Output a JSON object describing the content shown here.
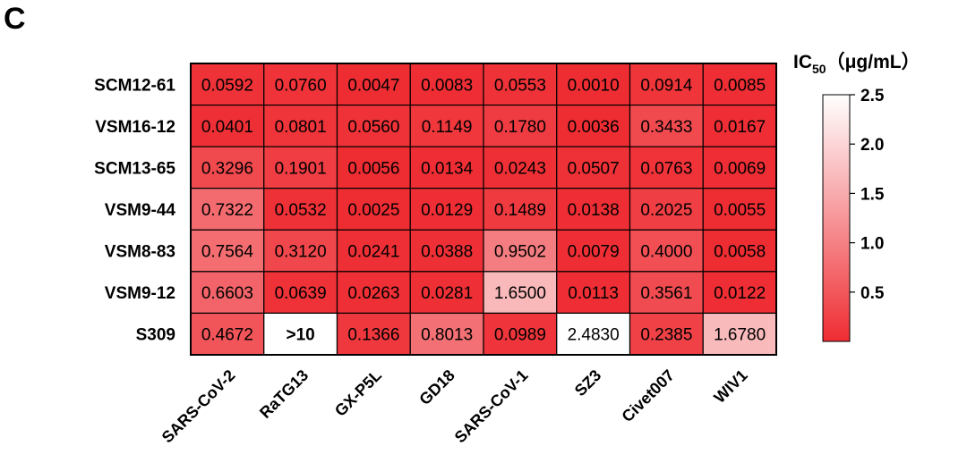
{
  "panel_label": "C",
  "chart_data": {
    "type": "heatmap",
    "rows": [
      "SCM12-61",
      "VSM16-12",
      "SCM13-65",
      "VSM9-44",
      "VSM8-83",
      "VSM9-12",
      "S309"
    ],
    "columns": [
      "SARS-CoV-2",
      "RaTG13",
      "GX-P5L",
      "GD18",
      "SARS-CoV-1",
      "SZ3",
      "Civet007",
      "WIV1"
    ],
    "values": [
      [
        "0.0592",
        "0.0760",
        "0.0047",
        "0.0083",
        "0.0553",
        "0.0010",
        "0.0914",
        "0.0085"
      ],
      [
        "0.0401",
        "0.0801",
        "0.0560",
        "0.1149",
        "0.1780",
        "0.0036",
        "0.3433",
        "0.0167"
      ],
      [
        "0.3296",
        "0.1901",
        "0.0056",
        "0.0134",
        "0.0243",
        "0.0507",
        "0.0763",
        "0.0069"
      ],
      [
        "0.7322",
        "0.0532",
        "0.0025",
        "0.0129",
        "0.1489",
        "0.0138",
        "0.2025",
        "0.0055"
      ],
      [
        "0.7564",
        "0.3120",
        "0.0241",
        "0.0388",
        "0.9502",
        "0.0079",
        "0.4000",
        "0.0058"
      ],
      [
        "0.6603",
        "0.0639",
        "0.0263",
        "0.0281",
        "1.6500",
        "0.0113",
        "0.3561",
        "0.0122"
      ],
      [
        "0.4672",
        ">10",
        "0.1366",
        "0.8013",
        "0.0989",
        "2.4830",
        "0.2385",
        "1.6780"
      ]
    ],
    "colorbar": {
      "title_main": "IC",
      "title_sub": "50",
      "title_unit": "（μg/mL）",
      "min": 0,
      "max": 2.5,
      "ticks": [
        "2.5",
        "2.0",
        "1.5",
        "1.0",
        "0.5"
      ],
      "low_color": "#ee2d33",
      "high_color": "#ffffff",
      "out_of_range_color": "#ffffff"
    }
  }
}
